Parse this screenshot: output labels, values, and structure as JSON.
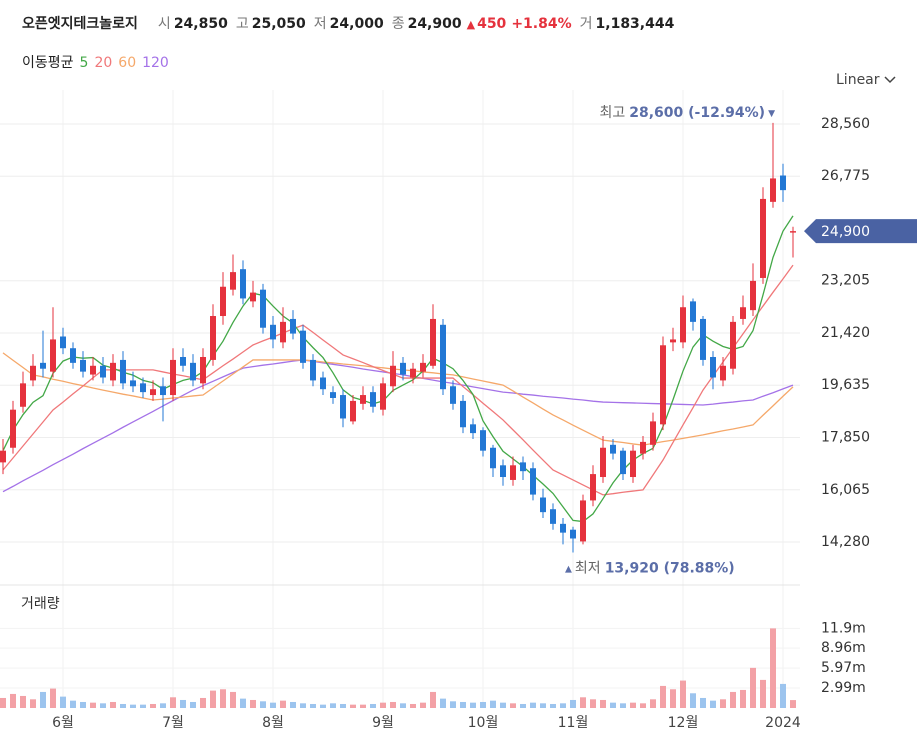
{
  "header": {
    "name": "오픈엣지테크놀로지",
    "fields": [
      {
        "label": "시",
        "value": "24,850"
      },
      {
        "label": "고",
        "value": "25,050"
      },
      {
        "label": "저",
        "value": "24,000"
      },
      {
        "label": "종",
        "value": "24,900"
      }
    ],
    "change_mark": "▲",
    "change": "450",
    "change_pct": "+1.84%",
    "volume_label": "거",
    "volume": "1,183,444"
  },
  "controls": {
    "ma_title": "이동평균",
    "scale_mode": "Linear",
    "volume_title": "거래량"
  },
  "chart_data": {
    "type": "candlestick",
    "grid": true,
    "colors": {
      "up": "#e5323d",
      "down": "#2277d4",
      "volume_up": "#f3a1a6",
      "volume_down": "#9cc4ee"
    },
    "categories": [
      null,
      null,
      null,
      null,
      null,
      null,
      "6월",
      null,
      null,
      null,
      null,
      null,
      null,
      null,
      null,
      null,
      null,
      "7월",
      null,
      null,
      null,
      null,
      null,
      null,
      null,
      null,
      null,
      "8월",
      null,
      null,
      null,
      null,
      null,
      null,
      null,
      null,
      null,
      null,
      "9월",
      null,
      null,
      null,
      null,
      null,
      null,
      null,
      null,
      null,
      "10월",
      null,
      null,
      null,
      null,
      null,
      null,
      null,
      null,
      "11월",
      null,
      null,
      null,
      null,
      null,
      null,
      null,
      null,
      null,
      null,
      "12월",
      null,
      null,
      null,
      null,
      null,
      null,
      null,
      null,
      null,
      "2024",
      null
    ],
    "open": [
      17000,
      17500,
      18900,
      19800,
      20400,
      20100,
      21300,
      20900,
      20500,
      20000,
      20300,
      19800,
      20500,
      19800,
      19700,
      19300,
      19600,
      19300,
      20600,
      20400,
      19700,
      20500,
      22000,
      22900,
      23600,
      22500,
      22900,
      21700,
      21100,
      21900,
      21500,
      20500,
      19900,
      19400,
      19300,
      18400,
      19000,
      19400,
      18800,
      19600,
      20400,
      19900,
      20100,
      20300,
      21700,
      19600,
      19100,
      18300,
      18100,
      17500,
      16900,
      16400,
      17000,
      16800,
      15800,
      15400,
      14900,
      14700,
      14300,
      15700,
      16500,
      17600,
      17400,
      16500,
      17300,
      17600,
      18300,
      21100,
      21100,
      22500,
      21900,
      20600,
      19800,
      20200,
      21900,
      22200,
      23300,
      25900,
      26800,
      24850
    ],
    "high": [
      17800,
      19100,
      20100,
      20700,
      21500,
      22300,
      21600,
      21100,
      20800,
      20600,
      20600,
      20700,
      20800,
      20100,
      19900,
      19800,
      19900,
      20900,
      20900,
      20700,
      20900,
      22400,
      23500,
      24100,
      23900,
      23200,
      23100,
      22000,
      22300,
      22200,
      21700,
      20700,
      20100,
      19600,
      19500,
      19300,
      19600,
      19600,
      19900,
      20800,
      20600,
      20400,
      20700,
      22400,
      21900,
      19800,
      19300,
      18500,
      18200,
      17600,
      17100,
      17200,
      17200,
      17000,
      16100,
      15600,
      15100,
      14800,
      15900,
      16900,
      17900,
      17800,
      17500,
      17600,
      17900,
      18700,
      21300,
      21600,
      22700,
      22600,
      22000,
      20800,
      20600,
      22000,
      22700,
      23800,
      26400,
      28600,
      27200,
      25050
    ],
    "low": [
      16600,
      17300,
      18700,
      19600,
      19900,
      19900,
      20700,
      20200,
      19900,
      19800,
      19700,
      19600,
      19500,
      19400,
      19200,
      19100,
      18400,
      19100,
      20100,
      19600,
      19500,
      20300,
      21700,
      22700,
      22400,
      22300,
      21400,
      20900,
      20900,
      21200,
      20200,
      19600,
      19300,
      19000,
      18200,
      18300,
      18800,
      18700,
      18600,
      19400,
      19800,
      19700,
      19900,
      20200,
      19300,
      18800,
      18000,
      17800,
      17200,
      16500,
      16200,
      16200,
      16400,
      15700,
      15100,
      14700,
      14200,
      13920,
      14200,
      15500,
      16300,
      17100,
      16400,
      16300,
      17100,
      17400,
      18100,
      20800,
      20900,
      21500,
      20300,
      19500,
      19600,
      20000,
      21700,
      22000,
      23100,
      25700,
      25900,
      24000
    ],
    "close": [
      17400,
      18800,
      19700,
      20300,
      20200,
      21200,
      20900,
      20400,
      20100,
      20300,
      19900,
      20400,
      19700,
      19600,
      19400,
      19500,
      19300,
      20500,
      20300,
      19800,
      20600,
      22000,
      23000,
      23500,
      22600,
      22800,
      21600,
      21200,
      21800,
      21400,
      20400,
      19800,
      19500,
      19200,
      18500,
      19100,
      19300,
      18900,
      19700,
      20300,
      20000,
      20200,
      20400,
      21900,
      19500,
      19000,
      18200,
      18000,
      17400,
      16800,
      16500,
      16900,
      16700,
      15900,
      15300,
      14900,
      14600,
      14400,
      15700,
      16600,
      17500,
      17300,
      16600,
      17400,
      17700,
      18400,
      21000,
      21200,
      22300,
      21800,
      20500,
      19900,
      20300,
      21800,
      22300,
      23200,
      26000,
      26700,
      26300,
      24900
    ],
    "volume": [
      1500000,
      2100000,
      1800000,
      1300000,
      2400000,
      2900000,
      1700000,
      1100000,
      900000,
      800000,
      700000,
      900000,
      600000,
      500000,
      500000,
      600000,
      700000,
      1600000,
      1200000,
      900000,
      1500000,
      2600000,
      2800000,
      2400000,
      1400000,
      1200000,
      1000000,
      800000,
      1100000,
      900000,
      700000,
      600000,
      500000,
      700000,
      600000,
      500000,
      500000,
      600000,
      800000,
      900000,
      700000,
      600000,
      800000,
      2400000,
      1400000,
      1000000,
      900000,
      800000,
      900000,
      1100000,
      800000,
      700000,
      600000,
      800000,
      700000,
      600000,
      700000,
      1200000,
      1600000,
      1300000,
      1200000,
      800000,
      700000,
      800000,
      700000,
      1300000,
      3300000,
      2800000,
      4100000,
      2200000,
      1500000,
      1100000,
      1300000,
      2400000,
      2700000,
      6000000,
      4200000,
      11900000,
      3600000,
      1183444
    ],
    "series": [
      {
        "name": "5",
        "color": "#43a847",
        "values": [
          17400,
          18100,
          18630,
          19050,
          19280,
          20040,
          20460,
          20600,
          20560,
          20580,
          20320,
          20220,
          20080,
          19980,
          19800,
          19720,
          19500,
          19660,
          19800,
          19880,
          20100,
          20640,
          21140,
          21780,
          22340,
          22780,
          22700,
          22340,
          22000,
          21760,
          21280,
          20920,
          20580,
          20060,
          19480,
          19220,
          19120,
          19000,
          19100,
          19460,
          19640,
          19820,
          20120,
          20560,
          20400,
          20200,
          19800,
          19320,
          18420,
          17880,
          17380,
          17120,
          16860,
          16560,
          16260,
          15940,
          15480,
          15020,
          14980,
          15240,
          15760,
          16300,
          16740,
          17080,
          17300,
          17480,
          18220,
          19140,
          20120,
          20940,
          21360,
          21140,
          20960,
          20860,
          20960,
          21500,
          22720,
          24000,
          24900,
          25420
        ]
      },
      {
        "name": "20",
        "color": "#f0787a",
        "values": [
          16740,
          17150,
          17560,
          17970,
          18380,
          18790,
          19060,
          19340,
          19610,
          19890,
          20160,
          20160,
          20160,
          20160,
          20160,
          20160,
          20090,
          20020,
          19960,
          19890,
          19820,
          20060,
          20300,
          20530,
          20770,
          21010,
          21150,
          21280,
          21420,
          21560,
          21690,
          21440,
          21180,
          20930,
          20670,
          20540,
          20410,
          20270,
          20140,
          20010,
          19880,
          19880,
          19880,
          19880,
          19880,
          19880,
          19590,
          19310,
          19020,
          18740,
          18450,
          18110,
          17770,
          17420,
          17080,
          16740,
          16570,
          16400,
          16230,
          16060,
          15890,
          15930,
          15980,
          16020,
          16060,
          16570,
          17080,
          17680,
          18280,
          18870,
          19470,
          19950,
          20430,
          20910,
          21390,
          21870,
          22340,
          22810,
          23270,
          23740
        ]
      },
      {
        "name": "60",
        "color": "#f5a86a",
        "values": [
          20740,
          20490,
          20240,
          19990,
          19920,
          19840,
          19770,
          19690,
          19620,
          19540,
          19470,
          19400,
          19330,
          19270,
          19200,
          19130,
          19160,
          19200,
          19230,
          19270,
          19300,
          19540,
          19780,
          20020,
          20260,
          20500,
          20500,
          20500,
          20500,
          20500,
          20500,
          20470,
          20430,
          20400,
          20360,
          20330,
          20300,
          20260,
          20230,
          20190,
          20160,
          20130,
          20090,
          20060,
          20020,
          19990,
          19920,
          19850,
          19780,
          19710,
          19640,
          19440,
          19230,
          19030,
          18820,
          18620,
          18450,
          18270,
          18100,
          17930,
          17760,
          17720,
          17680,
          17630,
          17590,
          17650,
          17710,
          17760,
          17820,
          17880,
          17940,
          18010,
          18080,
          18140,
          18210,
          18280,
          18610,
          18930,
          19260,
          19580
        ]
      },
      {
        "name": "120",
        "color": "#a472e8",
        "values": [
          16000,
          16180,
          16370,
          16550,
          16730,
          16920,
          17100,
          17280,
          17470,
          17650,
          17830,
          18010,
          18200,
          18380,
          18560,
          18740,
          18930,
          19110,
          19290,
          19470,
          19620,
          19770,
          19920,
          20070,
          20220,
          20270,
          20320,
          20360,
          20410,
          20460,
          20500,
          20450,
          20400,
          20350,
          20300,
          20250,
          20190,
          20140,
          20090,
          20040,
          19990,
          19930,
          19870,
          19810,
          19750,
          19700,
          19640,
          19580,
          19520,
          19460,
          19400,
          19370,
          19330,
          19300,
          19260,
          19230,
          19200,
          19160,
          19130,
          19090,
          19060,
          19050,
          19040,
          19030,
          19020,
          19010,
          19000,
          18990,
          18980,
          18970,
          18960,
          18990,
          19030,
          19060,
          19100,
          19130,
          19260,
          19380,
          19510,
          19640
        ]
      }
    ],
    "ylim": [
      12982,
      29721
    ],
    "yticks": [
      {
        "value": 14280,
        "label": "14,280"
      },
      {
        "value": 16065,
        "label": "16,065"
      },
      {
        "value": 17850,
        "label": "17,850"
      },
      {
        "value": 19635,
        "label": "19,635"
      },
      {
        "value": 21420,
        "label": "21,420"
      },
      {
        "value": 23205,
        "label": "23,205"
      },
      {
        "value": 26775,
        "label": "26,775"
      },
      {
        "value": 28560,
        "label": "28,560"
      }
    ],
    "volume_ylim": [
      0,
      17640000
    ],
    "volume_ticks": [
      {
        "value": 2990000,
        "label": "2.99m"
      },
      {
        "value": 5970000,
        "label": "5.97m"
      },
      {
        "value": 8960000,
        "label": "8.96m"
      },
      {
        "value": 11900000,
        "label": "11.9m"
      }
    ],
    "last_price": {
      "value": 24900,
      "label": "24,900"
    },
    "high_note": {
      "prefix": "최고",
      "value": 28600,
      "label": "28,600 (-12.94%)"
    },
    "low_note": {
      "prefix": "최저",
      "value": 13920,
      "label": "13,920 (78.88%)"
    }
  }
}
